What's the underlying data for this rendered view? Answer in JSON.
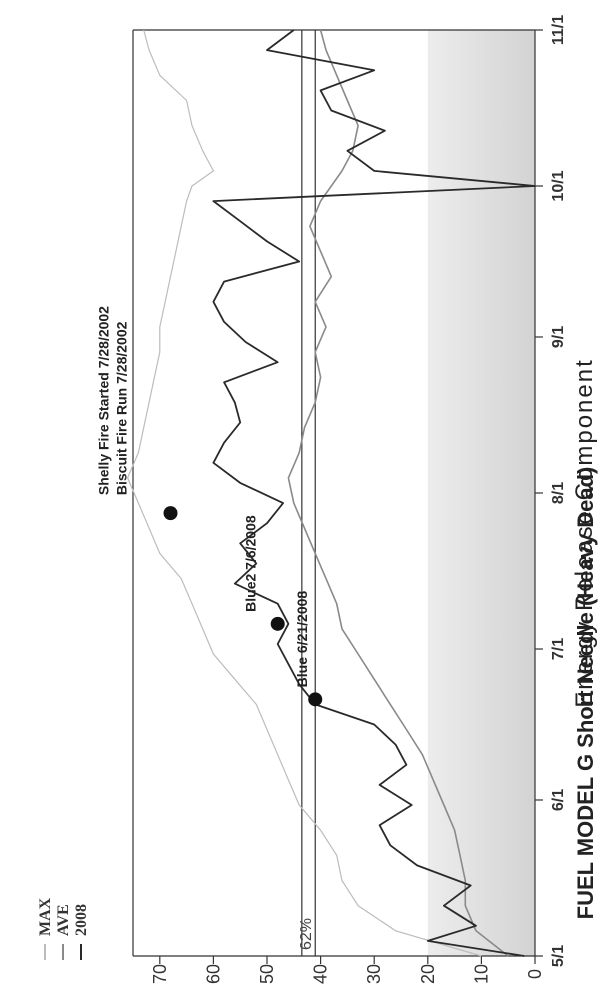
{
  "chart_data": {
    "type": "line",
    "title": "FUEL MODEL G Short Needle (Heavy Dead)",
    "ylabel": "Energy Release Component",
    "xlabel": "",
    "xlim": [
      "5/1",
      "11/1"
    ],
    "ylim": [
      0,
      75
    ],
    "x_ticks": [
      "5/1",
      "6/1",
      "7/1",
      "8/1",
      "9/1",
      "10/1",
      "11/1"
    ],
    "y_ticks": [
      0,
      10,
      20,
      30,
      40,
      50,
      60,
      70
    ],
    "legend": [
      "MAX",
      "AVE",
      "2008"
    ],
    "legend_placement": "top-left",
    "threshold": {
      "label": "62%",
      "value": 41
    },
    "series": [
      {
        "name": "MAX",
        "color": "#bcbcbc",
        "x": [
          0,
          5,
          10,
          15,
          20,
          25,
          30,
          35,
          40,
          45,
          50,
          55,
          60,
          65,
          70,
          75,
          80,
          85,
          90,
          95,
          100,
          105,
          110,
          115,
          120,
          125,
          130,
          135,
          140,
          145,
          150,
          153,
          156,
          160,
          165,
          170,
          175,
          180,
          184
        ],
        "values": [
          10,
          26,
          33,
          36,
          37,
          40,
          44,
          46,
          48,
          50,
          52,
          56,
          60,
          62,
          64,
          66,
          70,
          72,
          74,
          76,
          74,
          73,
          72,
          71,
          70,
          70,
          69,
          68,
          67,
          66,
          65,
          64,
          60,
          62,
          64,
          65,
          70,
          72,
          73
        ]
      },
      {
        "name": "AVE",
        "color": "#8a8a8a",
        "x": [
          0,
          5,
          10,
          15,
          20,
          25,
          30,
          35,
          40,
          45,
          50,
          55,
          60,
          65,
          70,
          75,
          80,
          85,
          90,
          95,
          100,
          105,
          110,
          115,
          120,
          125,
          130,
          135,
          140,
          145,
          150,
          153,
          156,
          160,
          165,
          170,
          175,
          180,
          184
        ],
        "values": [
          5,
          11,
          13,
          13,
          14,
          15,
          17,
          19,
          21,
          24,
          27,
          30,
          33,
          36,
          37,
          39,
          41,
          43,
          45,
          46,
          44,
          43,
          41,
          40,
          41,
          39,
          41,
          38,
          40,
          42,
          40,
          38,
          36,
          34,
          33,
          35,
          37,
          39,
          40
        ]
      },
      {
        "name": "2008",
        "color": "#2a2a2a",
        "x": [
          0,
          3,
          6,
          10,
          14,
          18,
          22,
          26,
          30,
          34,
          38,
          42,
          46,
          50,
          54,
          58,
          62,
          66,
          70,
          74,
          78,
          82,
          86,
          90,
          94,
          98,
          102,
          106,
          110,
          114,
          118,
          122,
          126,
          130,
          134,
          138,
          142,
          146,
          150,
          153,
          156,
          160,
          164,
          168,
          172,
          176,
          180,
          184
        ],
        "values": [
          2,
          20,
          11,
          17,
          12,
          22,
          27,
          29,
          23,
          29,
          24,
          26,
          30,
          41,
          44,
          46,
          48,
          46,
          48,
          56,
          52,
          55,
          50,
          47,
          55,
          60,
          58,
          55,
          56,
          58,
          48,
          54,
          58,
          60,
          58,
          44,
          50,
          55,
          60,
          0,
          30,
          35,
          28,
          38,
          40,
          30,
          50,
          45
        ]
      }
    ],
    "annotations": [
      {
        "label": "Blue 6/21/2008",
        "x": 51,
        "y": 41
      },
      {
        "label": "Blue2 7/6/2008",
        "x": 66,
        "y": 48
      },
      {
        "label": "Biscuit Fire Run 7/28/2002",
        "x": 88,
        "y": 68
      },
      {
        "label": "Shelly Fire Started 7/28/2002",
        "x": 88,
        "y": 68
      }
    ]
  }
}
